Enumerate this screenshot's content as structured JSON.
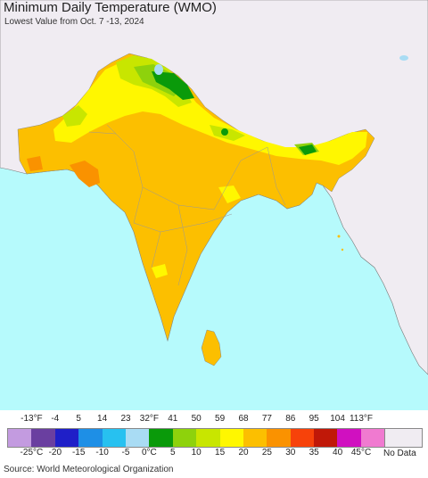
{
  "header": {
    "title": "Minimum Daily Temperature (WMO)",
    "subtitle": "Lowest Value from Oct. 7 -13, 2024"
  },
  "legend": {
    "fahrenheit_ticks": [
      "-13°F",
      "-4",
      "5",
      "14",
      "23",
      "32°F",
      "41",
      "50",
      "59",
      "68",
      "77",
      "86",
      "95",
      "104",
      "113°F"
    ],
    "celsius_ticks": [
      "-25°C",
      "-20",
      "-15",
      "-10",
      "-5",
      "0°C",
      "5",
      "10",
      "15",
      "20",
      "25",
      "30",
      "35",
      "40",
      "45°C"
    ],
    "colors": [
      "#c39be0",
      "#6a3fa0",
      "#1f1fc8",
      "#1e8fe6",
      "#27c1f0",
      "#a9dcf4",
      "#0a9a0a",
      "#8ed20c",
      "#c8e600",
      "#fff700",
      "#fcbf00",
      "#fa9200",
      "#f7420a",
      "#c01808",
      "#d010c0",
      "#f07ad0"
    ],
    "no_data_label": "No Data",
    "no_data_color": "#f0ecf2"
  },
  "map_colors": {
    "ocean": "#b6fafc",
    "land_nodata": "#f0ecf2",
    "warm": "#fcbf00",
    "hot": "#fa9200",
    "mild": "#fff700",
    "cool": "#c8e600",
    "cold": "#8ed20c",
    "freezing": "#0a9a0a",
    "frost": "#a9dcf4"
  },
  "footer": {
    "source": "Source: World Meteorological Organization"
  }
}
